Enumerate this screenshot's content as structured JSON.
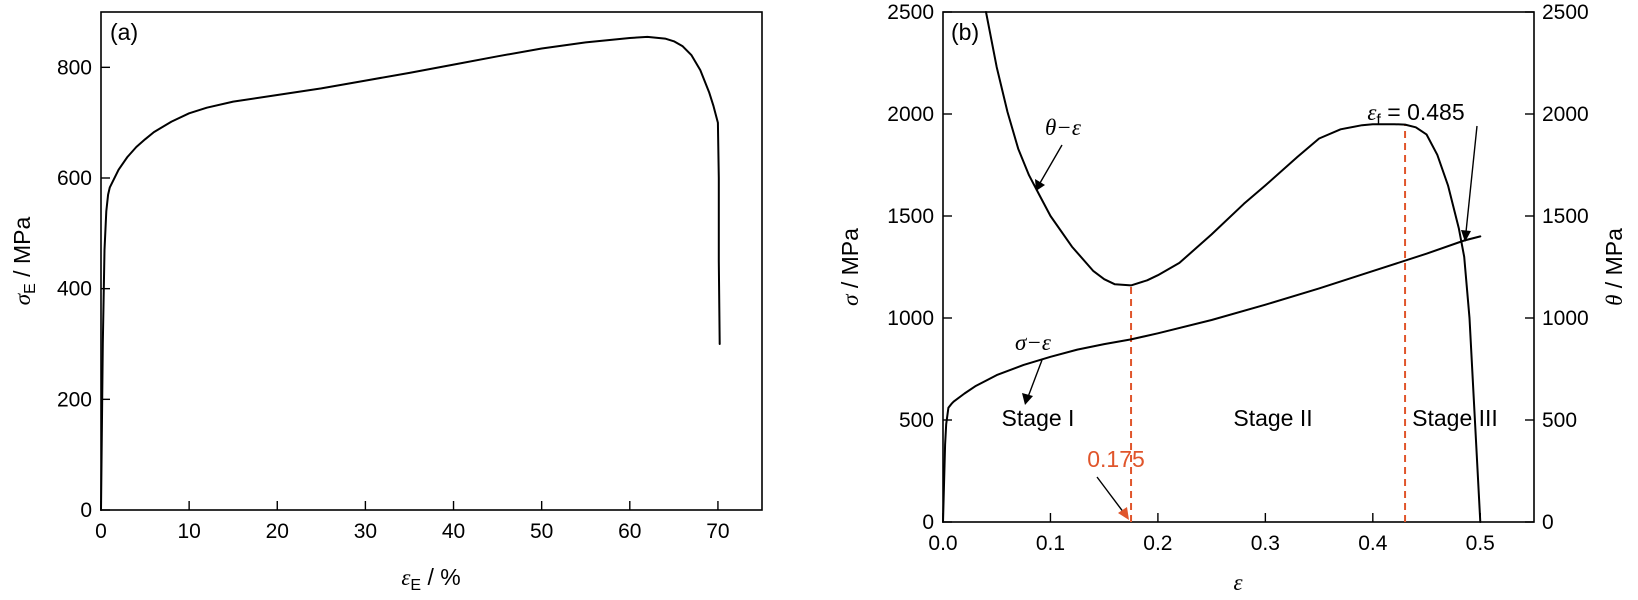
{
  "chart_data": [
    {
      "type": "line",
      "panel_label": "(a)",
      "xlabel": {
        "symbol": "ε",
        "subscript": "E",
        "unit": " / %"
      },
      "ylabel": {
        "symbol": "σ",
        "subscript": "E",
        "unit": " / MPa"
      },
      "xlim": [
        0,
        75
      ],
      "ylim": [
        0,
        900
      ],
      "xticks": [
        0,
        10,
        20,
        30,
        40,
        50,
        60,
        70
      ],
      "xtick_labels": [
        "0",
        "10",
        "20",
        "30",
        "40",
        "50",
        "60",
        "70"
      ],
      "yticks": [
        0,
        200,
        400,
        600,
        800
      ],
      "ytick_labels": [
        "0",
        "200",
        "400",
        "600",
        "800"
      ],
      "grid": false,
      "series": [
        {
          "x": [
            0,
            0.2,
            0.4,
            0.6,
            0.8,
            1,
            2,
            3,
            4,
            5,
            6,
            8,
            10,
            12,
            15,
            20,
            25,
            30,
            35,
            40,
            45,
            50,
            55,
            58,
            60,
            62,
            64,
            65,
            66,
            67,
            68,
            69,
            69.5,
            70,
            70.1,
            70.1,
            70.2
          ],
          "y": [
            0,
            300,
            470,
            540,
            570,
            583,
            615,
            638,
            656,
            670,
            683,
            702,
            717,
            727,
            738,
            750,
            762,
            776,
            790,
            805,
            820,
            834,
            845,
            850,
            853,
            855,
            852,
            847,
            838,
            822,
            795,
            755,
            730,
            700,
            600,
            450,
            300
          ]
        }
      ]
    },
    {
      "type": "line",
      "panel_label": "(b)",
      "xlabel": {
        "symbol": "ε"
      },
      "ylabel_left": {
        "symbol": "σ",
        "unit": " / MPa"
      },
      "ylabel_right": {
        "symbol": "θ",
        "unit": " / MPa"
      },
      "xlim": [
        0,
        0.55
      ],
      "ylim_left": [
        0,
        2500
      ],
      "ylim_right": [
        0,
        2500
      ],
      "xticks": [
        0,
        0.1,
        0.2,
        0.3,
        0.4,
        0.5
      ],
      "xtick_labels": [
        "0.0",
        "0.1",
        "0.2",
        "0.3",
        "0.4",
        "0.5"
      ],
      "yticks": [
        0,
        500,
        1000,
        1500,
        2000,
        2500
      ],
      "ytick_labels": [
        "0",
        "500",
        "1000",
        "1500",
        "2000",
        "2500"
      ],
      "grid": false,
      "series": [
        {
          "label": "σ−ε",
          "x": [
            0,
            0.001,
            0.002,
            0.003,
            0.005,
            0.008,
            0.01,
            0.02,
            0.03,
            0.05,
            0.075,
            0.1,
            0.125,
            0.15,
            0.175,
            0.2,
            0.25,
            0.3,
            0.35,
            0.4,
            0.45,
            0.485,
            0.5
          ],
          "y": [
            0,
            200,
            380,
            480,
            560,
            580,
            590,
            630,
            665,
            720,
            770,
            810,
            845,
            872,
            895,
            925,
            990,
            1065,
            1145,
            1230,
            1315,
            1380,
            1400
          ]
        },
        {
          "label": "θ−ε",
          "x": [
            0.04,
            0.05,
            0.06,
            0.07,
            0.08,
            0.09,
            0.1,
            0.12,
            0.14,
            0.15,
            0.16,
            0.175,
            0.19,
            0.2,
            0.22,
            0.25,
            0.28,
            0.3,
            0.33,
            0.35,
            0.37,
            0.39,
            0.4,
            0.42,
            0.43,
            0.44,
            0.45,
            0.46,
            0.47,
            0.48,
            0.485,
            0.49,
            0.495,
            0.5
          ],
          "y": [
            2500,
            2230,
            2010,
            1830,
            1700,
            1600,
            1500,
            1350,
            1230,
            1190,
            1165,
            1160,
            1185,
            1210,
            1270,
            1410,
            1560,
            1650,
            1790,
            1880,
            1925,
            1945,
            1950,
            1950,
            1948,
            1935,
            1900,
            1800,
            1650,
            1440,
            1300,
            1000,
            500,
            0
          ]
        }
      ],
      "annotations": {
        "stage_1": "Stage I",
        "stage_2": "Stage II",
        "stage_3": "Stage III",
        "marker_1": {
          "x": 0.175,
          "label": "0.175",
          "color": "#e0552b"
        },
        "marker_2": {
          "x": 0.43,
          "color": "#e0552b"
        },
        "fracture": {
          "symbol": "ε",
          "subscript": "f",
          "value_text": " = 0.485"
        },
        "color": "#e0552b"
      }
    }
  ]
}
